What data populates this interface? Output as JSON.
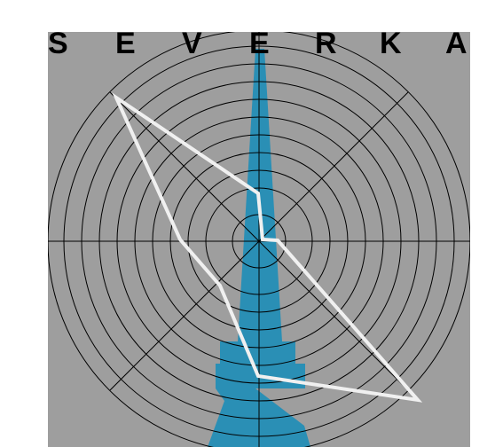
{
  "title_letters": [
    "S",
    "E",
    "V",
    "E",
    "R",
    "K",
    "A"
  ],
  "colors": {
    "background": "#ffffff",
    "panel": "#9e9e9e",
    "spire": "#2a8fb5",
    "grid": "#000000",
    "trace": "#f0f0f0",
    "title": "#000000"
  }
}
